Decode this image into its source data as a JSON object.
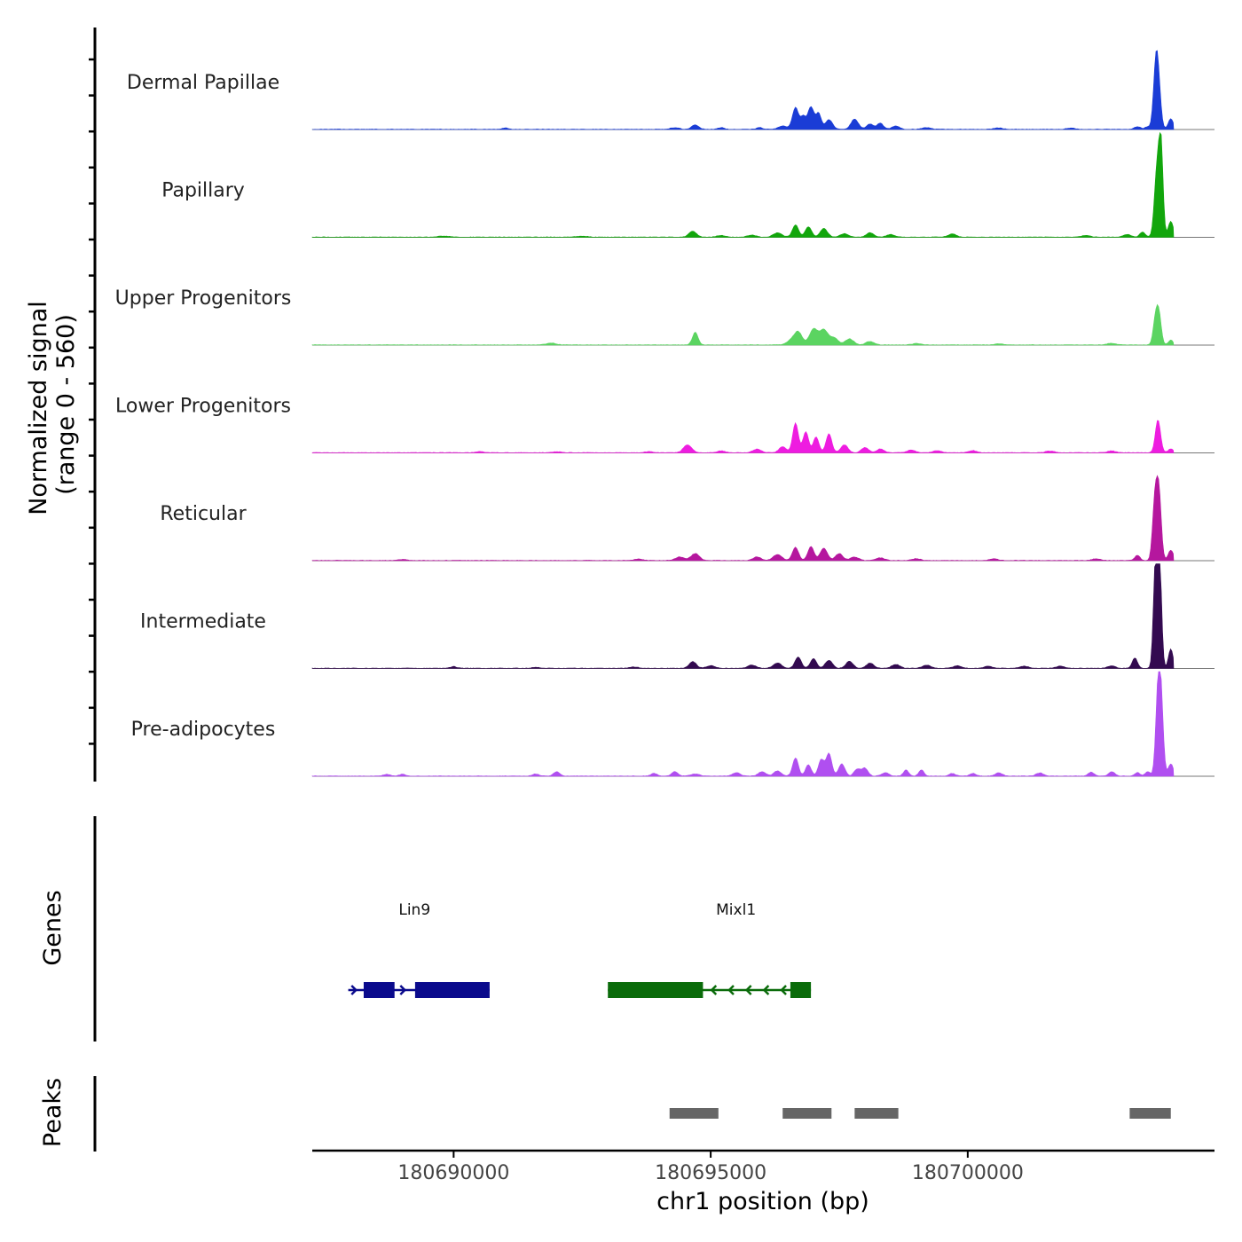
{
  "chart_data": {
    "type": "area",
    "title": "",
    "ylabel_lines": [
      "Normalized signal",
      "(range 0 - 560)"
    ],
    "xlabel": "chr1 position (bp)",
    "xlim": [
      180687250,
      180704800
    ],
    "x_ticks": [
      180690000,
      180695000,
      180700000
    ],
    "x_tick_labels": [
      "180690000",
      "180695000",
      "180700000"
    ],
    "ylim": [
      0,
      560
    ],
    "tracks": [
      {
        "name": "Dermal Papillae",
        "color": "#1a3cd6",
        "peaks": [
          [
            180691000,
            8,
            60
          ],
          [
            180694300,
            10,
            80
          ],
          [
            180694700,
            25,
            70
          ],
          [
            180695200,
            10,
            60
          ],
          [
            180695950,
            10,
            60
          ],
          [
            180696400,
            20,
            80
          ],
          [
            180696650,
            125,
            60
          ],
          [
            180696800,
            70,
            50
          ],
          [
            180696950,
            130,
            60
          ],
          [
            180697100,
            90,
            50
          ],
          [
            180697300,
            55,
            70
          ],
          [
            180697800,
            60,
            70
          ],
          [
            180698100,
            30,
            70
          ],
          [
            180698300,
            35,
            60
          ],
          [
            180698600,
            20,
            70
          ],
          [
            180699200,
            10,
            80
          ],
          [
            180700600,
            8,
            80
          ],
          [
            180702000,
            8,
            80
          ],
          [
            180703300,
            15,
            60
          ],
          [
            180703500,
            15,
            50
          ],
          [
            180703650,
            240,
            45
          ],
          [
            180703700,
            290,
            50
          ],
          [
            180703950,
            60,
            50
          ]
        ]
      },
      {
        "name": "Papillary",
        "color": "#12a60c",
        "peaks": [
          [
            180689800,
            6,
            120
          ],
          [
            180692500,
            6,
            100
          ],
          [
            180694650,
            35,
            70
          ],
          [
            180695200,
            10,
            80
          ],
          [
            180695800,
            12,
            80
          ],
          [
            180696300,
            25,
            80
          ],
          [
            180696650,
            70,
            60
          ],
          [
            180696900,
            60,
            60
          ],
          [
            180697200,
            50,
            70
          ],
          [
            180697600,
            20,
            80
          ],
          [
            180698100,
            25,
            70
          ],
          [
            180698500,
            15,
            80
          ],
          [
            180699700,
            18,
            80
          ],
          [
            180702300,
            10,
            80
          ],
          [
            180703100,
            15,
            70
          ],
          [
            180703400,
            30,
            50
          ],
          [
            180703680,
            380,
            50
          ],
          [
            180703760,
            500,
            40
          ],
          [
            180703950,
            90,
            50
          ]
        ]
      },
      {
        "name": "Upper Progenitors",
        "color": "#5bd461",
        "peaks": [
          [
            180691900,
            10,
            90
          ],
          [
            180694700,
            72,
            55
          ],
          [
            180696550,
            20,
            80
          ],
          [
            180696700,
            75,
            80
          ],
          [
            180697000,
            90,
            80
          ],
          [
            180697200,
            85,
            80
          ],
          [
            180697400,
            40,
            80
          ],
          [
            180697700,
            35,
            80
          ],
          [
            180698100,
            20,
            80
          ],
          [
            180699000,
            8,
            80
          ],
          [
            180700600,
            6,
            80
          ],
          [
            180702800,
            10,
            80
          ],
          [
            180703650,
            140,
            45
          ],
          [
            180703720,
            170,
            45
          ],
          [
            180703950,
            28,
            45
          ]
        ]
      },
      {
        "name": "Lower Progenitors",
        "color": "#ee1ce0",
        "peaks": [
          [
            180690500,
            6,
            80
          ],
          [
            180692000,
            6,
            80
          ],
          [
            180693800,
            6,
            80
          ],
          [
            180694550,
            45,
            80
          ],
          [
            180695200,
            10,
            80
          ],
          [
            180695900,
            20,
            80
          ],
          [
            180696400,
            35,
            70
          ],
          [
            180696650,
            170,
            55
          ],
          [
            180696850,
            120,
            55
          ],
          [
            180697050,
            90,
            55
          ],
          [
            180697300,
            110,
            55
          ],
          [
            180697600,
            45,
            70
          ],
          [
            180698000,
            30,
            70
          ],
          [
            180698300,
            22,
            70
          ],
          [
            180698900,
            15,
            80
          ],
          [
            180699400,
            12,
            80
          ],
          [
            180700100,
            12,
            80
          ],
          [
            180701600,
            10,
            80
          ],
          [
            180702800,
            10,
            80
          ],
          [
            180703700,
            190,
            50
          ],
          [
            180703950,
            22,
            50
          ]
        ]
      },
      {
        "name": "Reticular",
        "color": "#b5179e",
        "peaks": [
          [
            180689000,
            6,
            80
          ],
          [
            180693600,
            8,
            80
          ],
          [
            180694400,
            20,
            90
          ],
          [
            180694700,
            40,
            80
          ],
          [
            180695900,
            20,
            80
          ],
          [
            180696300,
            35,
            80
          ],
          [
            180696650,
            75,
            60
          ],
          [
            180696950,
            80,
            60
          ],
          [
            180697200,
            70,
            70
          ],
          [
            180697500,
            40,
            70
          ],
          [
            180697800,
            20,
            80
          ],
          [
            180698300,
            15,
            80
          ],
          [
            180699000,
            10,
            80
          ],
          [
            180700500,
            10,
            80
          ],
          [
            180702500,
            10,
            80
          ],
          [
            180703300,
            30,
            50
          ],
          [
            180703640,
            340,
            45
          ],
          [
            180703720,
            380,
            45
          ],
          [
            180703950,
            60,
            50
          ]
        ]
      },
      {
        "name": "Intermediate",
        "color": "#330a50",
        "peaks": [
          [
            180690000,
            10,
            60
          ],
          [
            180691600,
            5,
            80
          ],
          [
            180693500,
            8,
            80
          ],
          [
            180694650,
            38,
            70
          ],
          [
            180695000,
            15,
            80
          ],
          [
            180695800,
            18,
            80
          ],
          [
            180696300,
            30,
            80
          ],
          [
            180696700,
            65,
            60
          ],
          [
            180697000,
            55,
            60
          ],
          [
            180697300,
            45,
            70
          ],
          [
            180697700,
            40,
            70
          ],
          [
            180698100,
            30,
            70
          ],
          [
            180698600,
            22,
            80
          ],
          [
            180699200,
            18,
            80
          ],
          [
            180699800,
            15,
            80
          ],
          [
            180700400,
            12,
            80
          ],
          [
            180701100,
            12,
            80
          ],
          [
            180701800,
            12,
            80
          ],
          [
            180702800,
            15,
            70
          ],
          [
            180703250,
            60,
            50
          ],
          [
            180703650,
            580,
            40
          ],
          [
            180703730,
            640,
            40
          ],
          [
            180703950,
            110,
            45
          ]
        ]
      },
      {
        "name": "Pre-adipocytes",
        "color": "#b04ff0",
        "peaks": [
          [
            180688700,
            10,
            60
          ],
          [
            180689000,
            10,
            60
          ],
          [
            180691600,
            12,
            60
          ],
          [
            180692000,
            25,
            60
          ],
          [
            180693900,
            15,
            60
          ],
          [
            180694300,
            25,
            60
          ],
          [
            180694700,
            12,
            80
          ],
          [
            180695500,
            20,
            70
          ],
          [
            180696000,
            25,
            70
          ],
          [
            180696300,
            30,
            70
          ],
          [
            180696650,
            105,
            55
          ],
          [
            180696900,
            65,
            55
          ],
          [
            180697150,
            95,
            55
          ],
          [
            180697300,
            130,
            55
          ],
          [
            180697550,
            70,
            60
          ],
          [
            180697850,
            40,
            60
          ],
          [
            180698000,
            45,
            60
          ],
          [
            180698400,
            20,
            70
          ],
          [
            180698800,
            35,
            50
          ],
          [
            180699100,
            35,
            50
          ],
          [
            180699700,
            15,
            60
          ],
          [
            180700100,
            15,
            60
          ],
          [
            180700600,
            18,
            70
          ],
          [
            180701400,
            18,
            70
          ],
          [
            180702400,
            22,
            60
          ],
          [
            180702800,
            25,
            60
          ],
          [
            180703300,
            20,
            50
          ],
          [
            180703500,
            25,
            50
          ],
          [
            180703700,
            440,
            45
          ],
          [
            180703760,
            400,
            45
          ],
          [
            180703950,
            70,
            50
          ]
        ]
      }
    ],
    "genes": [
      {
        "name": "Lin9",
        "color": "#0a0a8c",
        "strand": "+",
        "start": 180687950,
        "end": 180690700,
        "exons": [
          [
            180688250,
            180688850
          ],
          [
            180689250,
            180690700
          ]
        ]
      },
      {
        "name": "Mixl1",
        "color": "#0a6b0a",
        "strand": "-",
        "start": 180693000,
        "end": 180696950,
        "exons": [
          [
            180693000,
            180694850
          ],
          [
            180696550,
            180696950
          ]
        ]
      }
    ],
    "genes_label": "Genes",
    "peaks_label": "Peaks",
    "peak_regions": [
      [
        180694200,
        180695150
      ],
      [
        180696400,
        180697350
      ],
      [
        180697800,
        180698650
      ],
      [
        180703150,
        180703950
      ]
    ],
    "peak_color": "#666666"
  }
}
